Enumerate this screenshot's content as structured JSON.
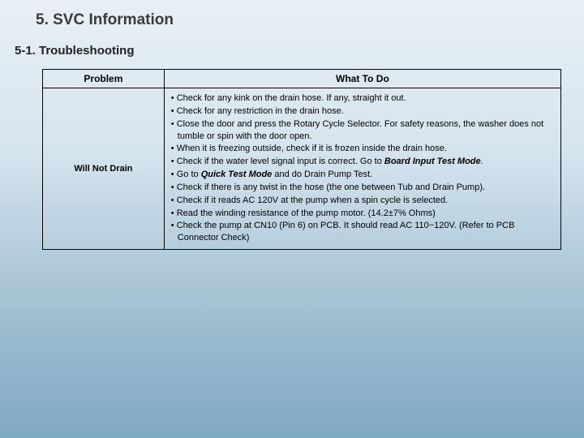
{
  "heading": "5. SVC Information",
  "subheading": "5-1. Troubleshooting",
  "table": {
    "headers": {
      "problem": "Problem",
      "action": "What To Do"
    },
    "row": {
      "problem": "Will Not Drain",
      "items": [
        {
          "t": "Check for any kink on the drain hose. If any, straight it out."
        },
        {
          "t": "Check for any restriction in the drain hose."
        },
        {
          "t": "Close the door and press the Rotary Cycle Selector. For safety reasons, the washer does not tumble or spin with the door open."
        },
        {
          "t": "When it is freezing outside, check if it is frozen inside the drain hose."
        },
        {
          "pre": "Check if the water level signal input is correct. Go to ",
          "em": "Board Input Test Mode",
          "post": "."
        },
        {
          "pre": "Go to ",
          "em": "Quick Test Mode",
          "post": " and do Drain Pump Test."
        },
        {
          "t": "Check if there is any twist in the hose (the one between Tub and Drain Pump)."
        },
        {
          "t": "Check if it reads AC 120V at the pump when a spin cycle is selected."
        },
        {
          "t": "Read the winding resistance of the pump motor. (14.2±7% Ohms)"
        },
        {
          "t": "Check the pump at CN10 (Pin 6) on PCB. It should read AC 110~120V. (Refer to PCB Connector Check)"
        }
      ]
    }
  }
}
